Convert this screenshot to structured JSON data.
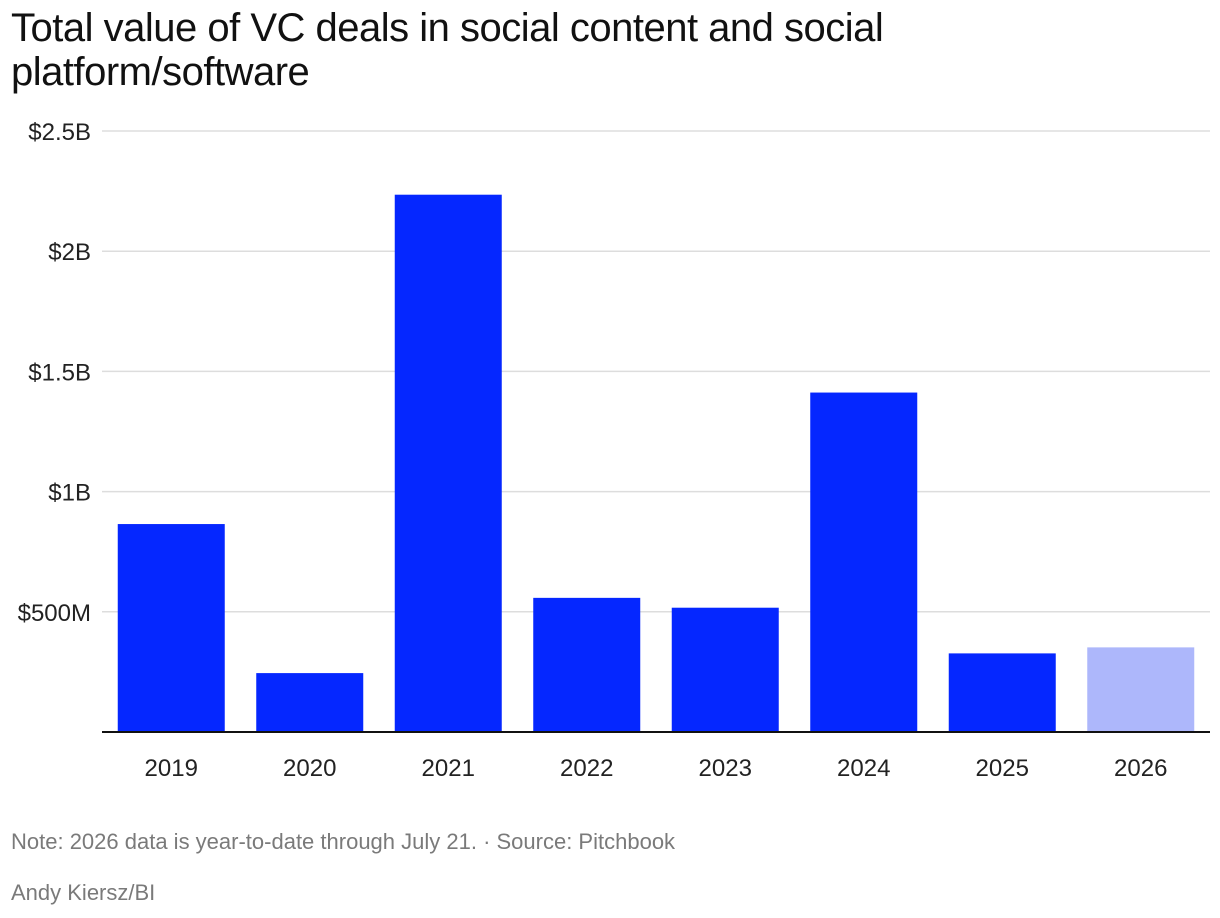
{
  "chart_data": {
    "type": "bar",
    "title": "Total value of VC deals in social content and social platform/software",
    "categories": [
      "2019",
      "2020",
      "2021",
      "2022",
      "2023",
      "2024",
      "2025",
      "2026"
    ],
    "values": [
      865,
      245,
      2235,
      558,
      517,
      1412,
      327,
      352
    ],
    "unit": "millions USD",
    "ylim": [
      0,
      2500
    ],
    "yticks": [
      {
        "value": 500,
        "label": "$500M"
      },
      {
        "value": 1000,
        "label": "$1B"
      },
      {
        "value": 1500,
        "label": "$1.5B"
      },
      {
        "value": 2000,
        "label": "$2B"
      },
      {
        "value": 2500,
        "label": "$2.5B"
      }
    ],
    "grid": true,
    "colors": {
      "bar": "#0527ff",
      "partial_bar": "#adb7fb",
      "grid": "#dddddd",
      "axis": "#111111"
    },
    "partial_categories": [
      "2026"
    ]
  },
  "note": "Note: 2026 data is year-to-date through July 21. · Source: Pitchbook",
  "credit": "Andy Kiersz/BI"
}
